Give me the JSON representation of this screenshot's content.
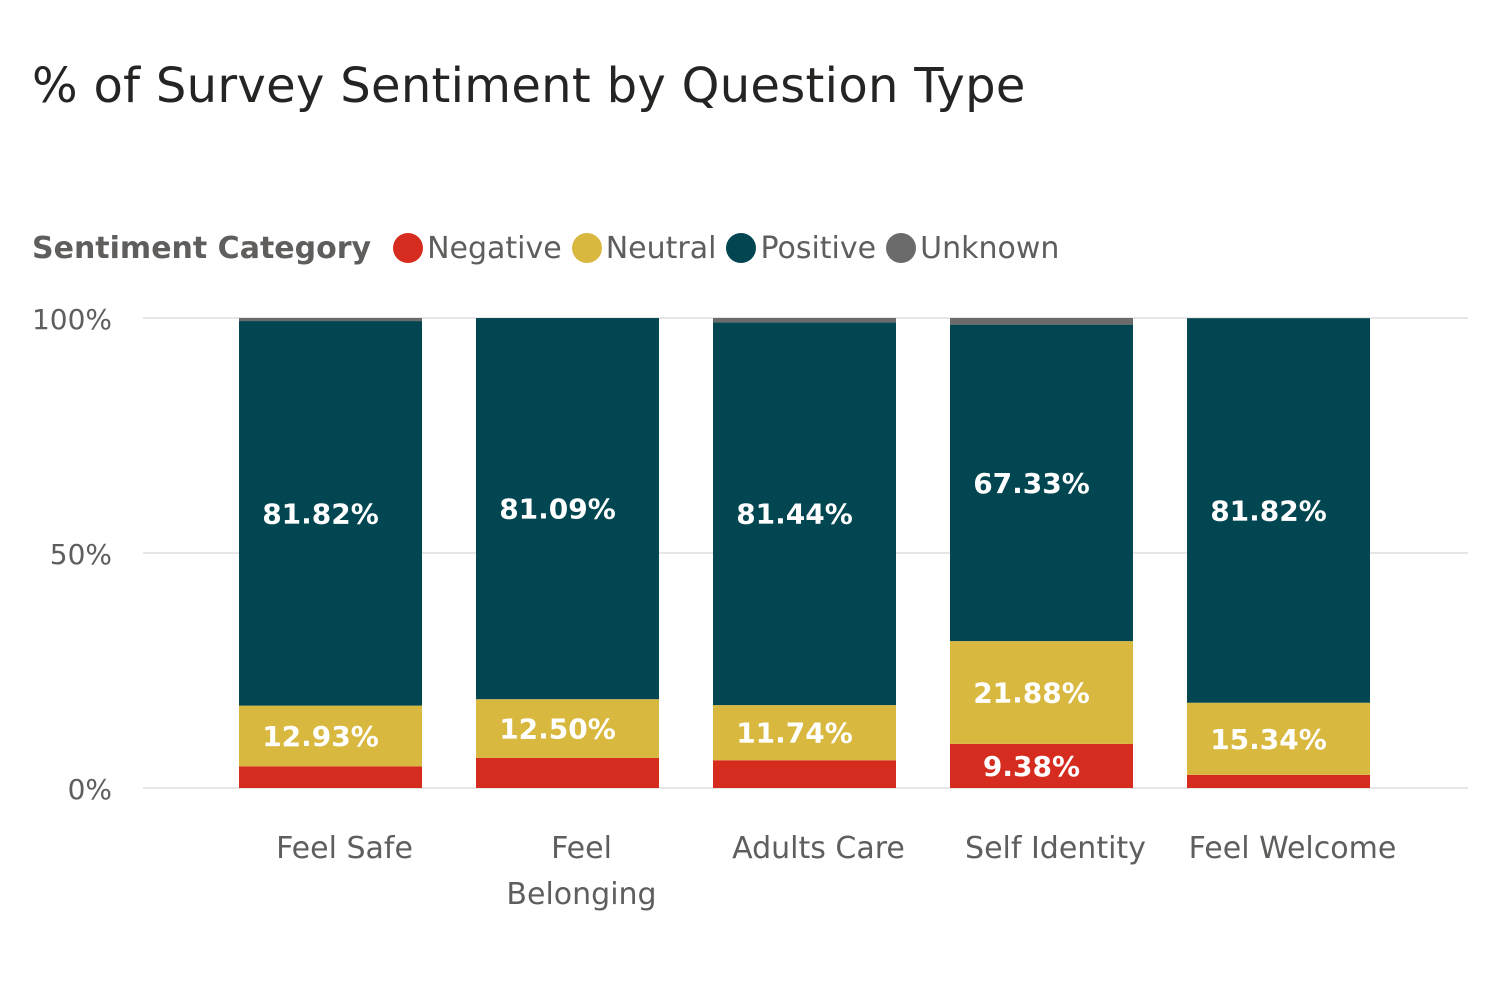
{
  "chart_data": {
    "type": "bar",
    "stacked": true,
    "title": "% of Survey Sentiment by Question Type",
    "legend_title": "Sentiment Category",
    "legend_position": "top-left",
    "categories": [
      [
        "Feel Safe"
      ],
      [
        "Feel",
        "Belonging"
      ],
      [
        "Adults Care"
      ],
      [
        "Self Identity"
      ],
      [
        "Feel Welcome"
      ]
    ],
    "series": [
      {
        "name": "Negative",
        "color": "#d62b1f",
        "values": [
          4.6,
          6.4,
          5.9,
          9.38,
          2.8
        ]
      },
      {
        "name": "Neutral",
        "color": "#d9b840",
        "values": [
          12.93,
          12.5,
          11.74,
          21.88,
          15.34
        ]
      },
      {
        "name": "Positive",
        "color": "#024651",
        "values": [
          81.82,
          81.09,
          81.44,
          67.33,
          81.82
        ]
      },
      {
        "name": "Unknown",
        "color": "#6b6b6b",
        "values": [
          0.65,
          0.01,
          0.92,
          1.41,
          0.04
        ]
      }
    ],
    "data_labels": {
      "Neutral": [
        "12.93%",
        "12.50%",
        "11.74%",
        "21.88%",
        "15.34%"
      ],
      "Positive": [
        "81.82%",
        "81.09%",
        "81.44%",
        "67.33%",
        "81.82%"
      ],
      "Negative": [
        "",
        "",
        "",
        "9.38%",
        ""
      ]
    },
    "y_ticks": [
      "0%",
      "50%",
      "100%"
    ],
    "y_tick_values": [
      0,
      50,
      100
    ],
    "ylim": [
      0,
      100
    ],
    "grid": true
  }
}
